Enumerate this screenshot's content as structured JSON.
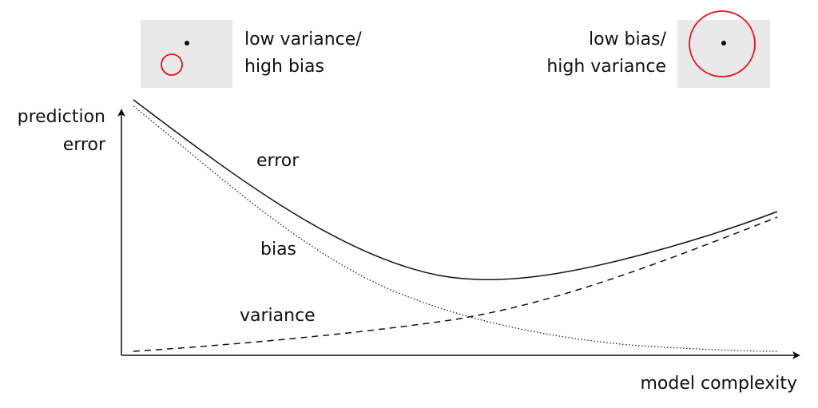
{
  "axes": {
    "y_label_line1": "prediction",
    "y_label_line2": "error",
    "x_label": "model complexity"
  },
  "curves": {
    "error_label": "error",
    "bias_label": "bias",
    "variance_label": "variance"
  },
  "insets": {
    "left": {
      "line1": "low variance/",
      "line2": "high bias"
    },
    "right": {
      "line1": "low bias/",
      "line2": "high variance"
    }
  },
  "colors": {
    "target_ring": "#e8141b",
    "panel_bg": "#e9e9e9",
    "ink": "#111111"
  }
}
